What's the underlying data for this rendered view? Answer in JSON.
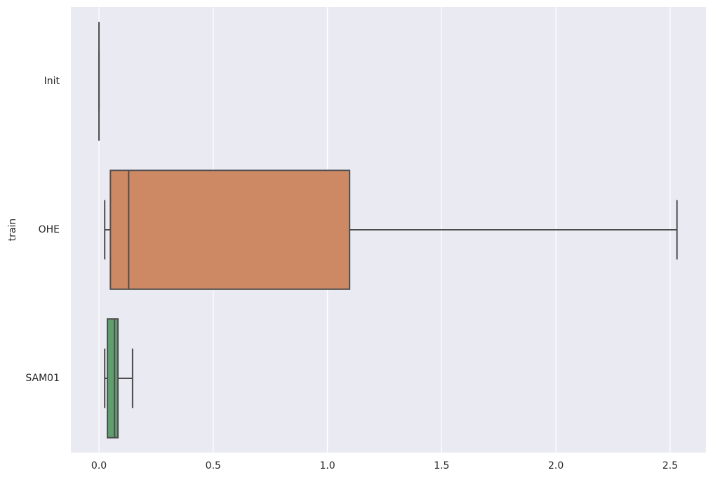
{
  "chart_data": {
    "type": "box",
    "ylabel": "train",
    "categories": [
      "Init",
      "OHE",
      "SAM01"
    ],
    "colors": [
      "#5975a4",
      "#cc8963",
      "#5f9e6e"
    ],
    "boxes": [
      {
        "whisker_low": 0,
        "q1": 0,
        "median": 0,
        "q3": 0,
        "whisker_high": 0
      },
      {
        "whisker_low": 0.025,
        "q1": 0.05,
        "median": 0.13,
        "q3": 1.097,
        "whisker_high": 2.53
      },
      {
        "whisker_low": 0.025,
        "q1": 0.037,
        "median": 0.068,
        "q3": 0.083,
        "whisker_high": 0.147
      }
    ],
    "xlim": [
      -0.123,
      2.657
    ],
    "xticks": [
      {
        "value": 0,
        "label": "0.0"
      },
      0.5,
      {
        "value": 1,
        "label": "1.0"
      },
      1.5,
      {
        "value": 2,
        "label": "2.0"
      },
      2.5
    ],
    "grid": true
  }
}
